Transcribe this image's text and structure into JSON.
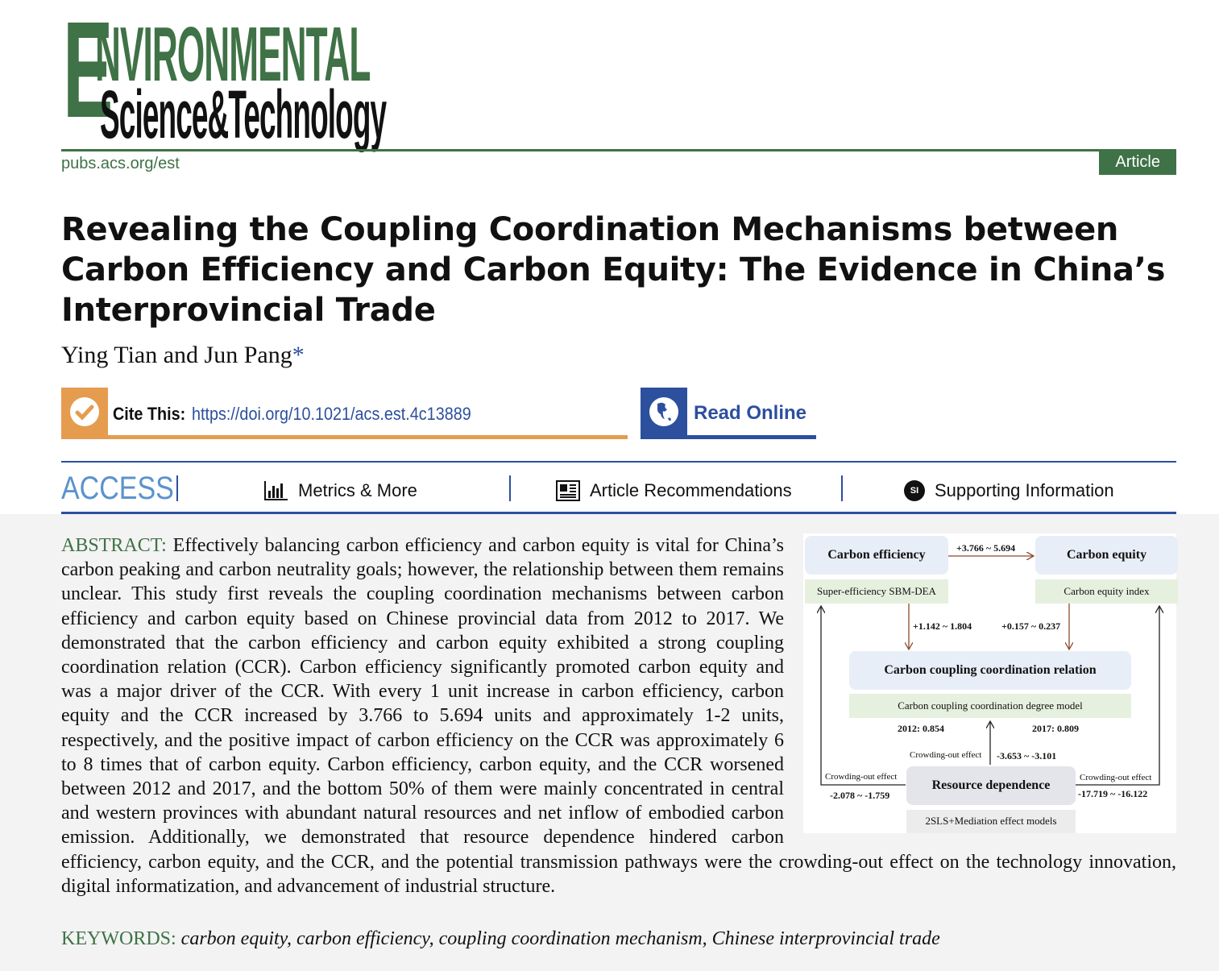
{
  "journal": {
    "logo_line1": "Environmental",
    "logo_line2": "Science & Technology",
    "url": "pubs.acs.org/est",
    "article_type": "Article"
  },
  "title": "Revealing the Coupling Coordination Mechanisms between Carbon Efficiency and Carbon Equity: The Evidence in China’s Interprovincial Trade",
  "authors": "Ying Tian and Jun Pang",
  "corresponding_mark": "*",
  "cite": {
    "label": "Cite This:",
    "doi": "https://doi.org/10.1021/acs.est.4c13889"
  },
  "read_online": "Read Online",
  "access_bar": {
    "access": "ACCESS",
    "metrics": "Metrics & More",
    "recommendations": "Article Recommendations",
    "si_icon": "SI",
    "supporting": "Supporting Information"
  },
  "abstract": {
    "heading": "ABSTRACT:",
    "text": "Effectively balancing carbon efficiency and carbon equity is vital for China’s carbon peaking and carbon neutrality goals; however, the relationship between them remains unclear. This study first reveals the coupling coordination mechanisms between carbon efficiency and carbon equity based on Chinese provincial data from 2012 to 2017. We demonstrated that the carbon efficiency and carbon equity exhibited a strong coupling coordination relation (CCR). Carbon efficiency significantly promoted carbon equity and was a major driver of the CCR. With every 1 unit increase in carbon efficiency, carbon equity and the CCR increased by 3.766 to 5.694 units and approximately 1-2 units, respectively, and the positive impact of carbon efficiency on the CCR was approximately 6 to 8 times that of carbon equity. Carbon efficiency, carbon equity, and the CCR worsened between 2012 and 2017, and the bottom 50% of them were mainly concentrated in central and western provinces with abundant natural resources and net inflow of embodied carbon emission. Additionally, we demonstrated that resource dependence hindered carbon efficiency, carbon equity, and the CCR, and the potential transmission pathways were the crowding-out effect on the technology innovation, digital informatization, and advancement of industrial structure."
  },
  "figure": {
    "carbon_efficiency": "Carbon efficiency",
    "sbm": "Super-efficiency SBM-DEA",
    "carbon_equity": "Carbon equity",
    "equity_index": "Carbon equity index",
    "eff_to_eq": "+3.766 ~ 5.694",
    "eff_to_ccr": "+1.142 ~ 1.804",
    "eq_to_ccr": "+0.157 ~ 0.237",
    "ccr": "Carbon coupling coordination relation",
    "ccr_model": "Carbon coupling coordination degree model",
    "y2012": "2012: 0.854",
    "y2017": "2017: 0.809",
    "crowd_mid": "Crowding-out effect",
    "mid_val": "-3.653 ~ -3.101",
    "crowd_left": "Crowding-out effect",
    "left_val": "-2.078 ~ -1.759",
    "crowd_right": "Crowding-out effect",
    "right_val": "-17.719 ~ -16.122",
    "resource": "Resource dependence",
    "models": "2SLS+Mediation effect models",
    "colors": {
      "box_blue": "#e8eef7",
      "box_green": "#e6f0de",
      "box_gray": "#e3e5ea",
      "arrow_brown": "#8b4a2b"
    }
  },
  "keywords": {
    "heading": "KEYWORDS:",
    "text": "carbon equity, carbon efficiency, coupling coordination mechanism, Chinese interprovincial trade"
  },
  "colors": {
    "journal_green": "#3f7246",
    "acs_blue": "#2c4f9e",
    "cite_orange": "#e59c4f",
    "access_blue": "#5b93cc"
  }
}
